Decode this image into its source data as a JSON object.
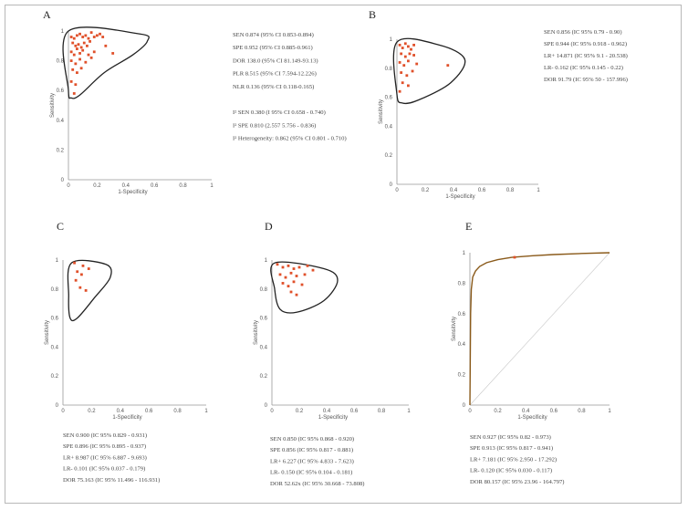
{
  "chart_data": [
    {
      "id": "A",
      "type": "scatter",
      "label": "A",
      "xlabel": "1-Specificity",
      "ylabel": "Sensitivity",
      "xlim": [
        0,
        1
      ],
      "ylim": [
        0,
        1
      ],
      "xticks": [
        "0",
        "0.2",
        "0.4",
        "0.6",
        "0.8",
        "1"
      ],
      "yticks": [
        "0",
        "0.2",
        "0.4",
        "0.6",
        "0.8",
        "1"
      ],
      "ellipse_points": [
        [
          0.0,
          1.0
        ],
        [
          0.5,
          0.98
        ],
        [
          0.55,
          0.93
        ],
        [
          0.45,
          0.84
        ],
        [
          0.25,
          0.72
        ],
        [
          0.08,
          0.57
        ],
        [
          0.02,
          0.55
        ],
        [
          0.0,
          0.6
        ]
      ],
      "points": [
        [
          0.02,
          0.96
        ],
        [
          0.04,
          0.95
        ],
        [
          0.06,
          0.97
        ],
        [
          0.08,
          0.98
        ],
        [
          0.1,
          0.96
        ],
        [
          0.12,
          0.97
        ],
        [
          0.14,
          0.95
        ],
        [
          0.16,
          0.99
        ],
        [
          0.18,
          0.96
        ],
        [
          0.2,
          0.97
        ],
        [
          0.22,
          0.98
        ],
        [
          0.24,
          0.96
        ],
        [
          0.03,
          0.92
        ],
        [
          0.05,
          0.9
        ],
        [
          0.07,
          0.91
        ],
        [
          0.09,
          0.89
        ],
        [
          0.11,
          0.92
        ],
        [
          0.13,
          0.9
        ],
        [
          0.15,
          0.93
        ],
        [
          0.02,
          0.86
        ],
        [
          0.04,
          0.84
        ],
        [
          0.06,
          0.88
        ],
        [
          0.08,
          0.85
        ],
        [
          0.1,
          0.87
        ],
        [
          0.14,
          0.84
        ],
        [
          0.18,
          0.86
        ],
        [
          0.02,
          0.8
        ],
        [
          0.05,
          0.78
        ],
        [
          0.08,
          0.81
        ],
        [
          0.12,
          0.79
        ],
        [
          0.16,
          0.82
        ],
        [
          0.03,
          0.74
        ],
        [
          0.06,
          0.72
        ],
        [
          0.09,
          0.75
        ],
        [
          0.02,
          0.66
        ],
        [
          0.05,
          0.64
        ],
        [
          0.04,
          0.58
        ],
        [
          0.31,
          0.85
        ],
        [
          0.26,
          0.9
        ]
      ],
      "stats": [
        "SEN 0.874 (95% CI 0.853-0.894)",
        "SPE 0.952 (95% CI 0.885-0.961)",
        "DOR 138.0 (95% CI 81.149-93.13)",
        "PLR 8.515 (95% CI 7.594-12.226)",
        "NLR 0.136 (95% CI 0.118-0.165)",
        "",
        "I² SEN 0.380 (I 95% CI 0.658 - 0.740)",
        "I² SPE 0.810 (2.557 5.756 - 0.836)",
        "I² Heterogeneity: 0.862 (95% CI 0.801 - 0.710)"
      ]
    },
    {
      "id": "B",
      "type": "scatter",
      "label": "B",
      "xlabel": "1-Specificity",
      "ylabel": "Sensitivity",
      "xlim": [
        0,
        1
      ],
      "ylim": [
        0,
        1
      ],
      "xticks": [
        "0",
        "0.2",
        "0.4",
        "0.6",
        "0.8",
        "1"
      ],
      "yticks": [
        "0",
        "0.2",
        "0.4",
        "0.6",
        "0.8",
        "1"
      ],
      "ellipse_points": [
        [
          0.0,
          0.98
        ],
        [
          0.3,
          0.96
        ],
        [
          0.48,
          0.86
        ],
        [
          0.38,
          0.7
        ],
        [
          0.15,
          0.58
        ],
        [
          0.04,
          0.56
        ],
        [
          0.0,
          0.62
        ]
      ],
      "points": [
        [
          0.02,
          0.96
        ],
        [
          0.04,
          0.94
        ],
        [
          0.06,
          0.97
        ],
        [
          0.08,
          0.95
        ],
        [
          0.1,
          0.93
        ],
        [
          0.12,
          0.96
        ],
        [
          0.03,
          0.9
        ],
        [
          0.06,
          0.88
        ],
        [
          0.09,
          0.9
        ],
        [
          0.12,
          0.89
        ],
        [
          0.02,
          0.84
        ],
        [
          0.05,
          0.82
        ],
        [
          0.08,
          0.85
        ],
        [
          0.14,
          0.83
        ],
        [
          0.03,
          0.77
        ],
        [
          0.07,
          0.75
        ],
        [
          0.11,
          0.78
        ],
        [
          0.04,
          0.7
        ],
        [
          0.08,
          0.68
        ],
        [
          0.02,
          0.64
        ],
        [
          0.36,
          0.82
        ]
      ],
      "stats": [
        "SEN 0.856 (IC 95% 0.79 - 0.90)",
        "SPE 0.944 (IC 95% 0.918 - 0.962)",
        "LR+ 14.871 (IC 95% 9.1 - 20.538)",
        "LR- 0.162 (IC 95% 0.145 - 0.22)",
        "DOR 91.79 (IC 95% 50 - 157.996)"
      ]
    },
    {
      "id": "C",
      "type": "scatter",
      "label": "C",
      "xlabel": "1-Specificity",
      "ylabel": "Sensitivity",
      "xlim": [
        0,
        1
      ],
      "ylim": [
        0,
        1
      ],
      "xticks": [
        "0",
        "0.2",
        "0.4",
        "0.6",
        "0.8",
        "1"
      ],
      "yticks": [
        "0",
        "0.2",
        "0.4",
        "0.6",
        "0.8",
        "1"
      ],
      "ellipse_points": [
        [
          0.06,
          0.98
        ],
        [
          0.3,
          0.97
        ],
        [
          0.33,
          0.88
        ],
        [
          0.22,
          0.74
        ],
        [
          0.1,
          0.6
        ],
        [
          0.05,
          0.6
        ],
        [
          0.04,
          0.75
        ]
      ],
      "points": [
        [
          0.08,
          0.98
        ],
        [
          0.1,
          0.92
        ],
        [
          0.14,
          0.96
        ],
        [
          0.18,
          0.94
        ],
        [
          0.09,
          0.86
        ],
        [
          0.13,
          0.9
        ],
        [
          0.12,
          0.81
        ],
        [
          0.16,
          0.79
        ]
      ],
      "stats": [
        "SEN 0.900 (IC 95% 0.829 - 0.931)",
        "SPE 0.896 (IC 95% 0.895 - 0.937)",
        "LR+ 8.987 (IC 95% 6.887 - 9.693)",
        "LR- 0.101 (IC 95% 0.037 - 0.179)",
        "DOR 75.163 (IC 95% 11.496 - 116.931)"
      ]
    },
    {
      "id": "D",
      "type": "scatter",
      "label": "D",
      "xlabel": "1-Specificity",
      "ylabel": "Sensitivity",
      "xlim": [
        0,
        1
      ],
      "ylim": [
        0,
        1
      ],
      "xticks": [
        "0",
        "0.2",
        "0.4",
        "0.6",
        "0.8",
        "1"
      ],
      "yticks": [
        "0",
        "0.2",
        "0.4",
        "0.6",
        "0.8",
        "1"
      ],
      "ellipse_points": [
        [
          0.02,
          0.98
        ],
        [
          0.38,
          0.94
        ],
        [
          0.48,
          0.86
        ],
        [
          0.38,
          0.72
        ],
        [
          0.18,
          0.64
        ],
        [
          0.06,
          0.66
        ],
        [
          0.02,
          0.8
        ]
      ],
      "points": [
        [
          0.04,
          0.97
        ],
        [
          0.08,
          0.95
        ],
        [
          0.12,
          0.96
        ],
        [
          0.16,
          0.94
        ],
        [
          0.2,
          0.95
        ],
        [
          0.26,
          0.96
        ],
        [
          0.3,
          0.93
        ],
        [
          0.06,
          0.9
        ],
        [
          0.1,
          0.88
        ],
        [
          0.14,
          0.91
        ],
        [
          0.18,
          0.89
        ],
        [
          0.24,
          0.9
        ],
        [
          0.08,
          0.84
        ],
        [
          0.12,
          0.82
        ],
        [
          0.16,
          0.85
        ],
        [
          0.22,
          0.83
        ],
        [
          0.14,
          0.78
        ],
        [
          0.18,
          0.76
        ]
      ],
      "stats": [
        "SEN 0.850 (IC 95% 0.868 - 0.920)",
        "SPE 0.856 (IC 95% 0.817 - 0.881)",
        "LR+ 6.227 (IC 95% 4.833 - 7.623)",
        "LR- 0.150 (IC 95% 0.104 - 0.181)",
        "DOR 52.62x (IC 95% 30.668 - 73.808)"
      ]
    },
    {
      "id": "E",
      "type": "line",
      "label": "E",
      "xlabel": "1-Specificity",
      "ylabel": "Sensitivity",
      "xlim": [
        0,
        1
      ],
      "ylim": [
        0,
        1
      ],
      "xticks": [
        "0",
        "0.2",
        "0.4",
        "0.6",
        "0.8",
        "1"
      ],
      "yticks": [
        "0",
        "0.2",
        "0.4",
        "0.6",
        "0.8",
        "1"
      ],
      "curve": [
        [
          0.0,
          0.0
        ],
        [
          0.005,
          0.6
        ],
        [
          0.01,
          0.76
        ],
        [
          0.02,
          0.84
        ],
        [
          0.04,
          0.88
        ],
        [
          0.07,
          0.91
        ],
        [
          0.12,
          0.935
        ],
        [
          0.2,
          0.955
        ],
        [
          0.3,
          0.97
        ],
        [
          0.45,
          0.98
        ],
        [
          0.6,
          0.988
        ],
        [
          0.8,
          0.995
        ],
        [
          1.0,
          1.0
        ]
      ],
      "points": [
        [
          0.32,
          0.97
        ]
      ],
      "stats": [
        "SEN 0.927 (IC 95% 0.82 - 0.973)",
        "SPE 0.913 (IC 95% 0.817 - 0.941)",
        "LR+ 7.181 (IC 95% 2.950 - 17.292)",
        "LR- 0.120 (IC 95% 0.030 - 0.117)",
        "DOR 80.157 (IC 95% 23.96 - 164.797)"
      ]
    }
  ]
}
